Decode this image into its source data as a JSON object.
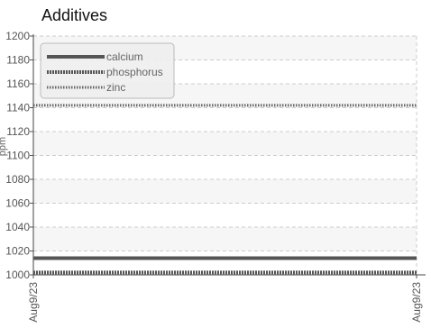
{
  "chart_data": {
    "type": "line",
    "title": "Additives",
    "ylabel": "ppm",
    "xlabel": "",
    "x": [
      "Aug9/23",
      "Aug9/23"
    ],
    "ylim": [
      1000,
      1200
    ],
    "yticks": [
      1000,
      1020,
      1040,
      1060,
      1080,
      1100,
      1120,
      1140,
      1160,
      1180,
      1200
    ],
    "grid": true,
    "legend_position": "top-left",
    "series": [
      {
        "name": "calcium",
        "values": [
          1014,
          1014
        ],
        "color": "#555555",
        "style": "solid"
      },
      {
        "name": "phosphorus",
        "values": [
          1002,
          1002
        ],
        "color": "#555555",
        "style": "dense-dotted"
      },
      {
        "name": "zinc",
        "values": [
          1142,
          1142
        ],
        "color": "#666666",
        "style": "dotted"
      }
    ]
  }
}
